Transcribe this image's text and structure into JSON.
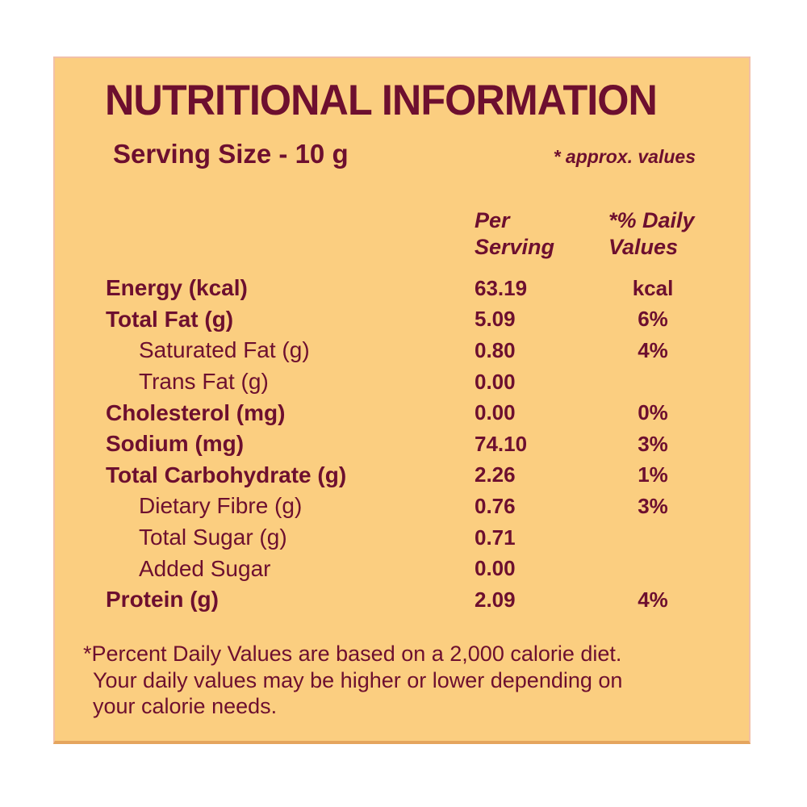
{
  "label": {
    "title": "NUTRITIONAL INFORMATION",
    "serving_size": "Serving Size  - 10 g",
    "approx_note": "* approx. values",
    "colors": {
      "background": "#FBCE80",
      "text": "#6D0F2F",
      "border_bottom": "#E5A55E"
    },
    "columns": {
      "per_serving": "Per Serving",
      "daily_values": "*% Daily Values"
    },
    "rows": [
      {
        "label": "Energy (kcal)",
        "bold": true,
        "indent": false,
        "per_serving": "63.19",
        "daily": "kcal"
      },
      {
        "label": "Total Fat (g)",
        "bold": true,
        "indent": false,
        "per_serving": "5.09",
        "daily": "6%"
      },
      {
        "label": "Saturated Fat (g)",
        "bold": false,
        "indent": true,
        "per_serving": "0.80",
        "daily": "4%"
      },
      {
        "label": "Trans Fat (g)",
        "bold": false,
        "indent": true,
        "per_serving": "0.00",
        "daily": ""
      },
      {
        "label": "Cholesterol (mg)",
        "bold": true,
        "indent": false,
        "per_serving": "0.00",
        "daily": "0%"
      },
      {
        "label": "Sodium (mg)",
        "bold": true,
        "indent": false,
        "per_serving": "74.10",
        "daily": "3%"
      },
      {
        "label": "Total Carbohydrate (g)",
        "bold": true,
        "indent": false,
        "per_serving": "2.26",
        "daily": "1%"
      },
      {
        "label": "Dietary Fibre (g)",
        "bold": false,
        "indent": true,
        "per_serving": "0.76",
        "daily": "3%"
      },
      {
        "label": "Total Sugar (g)",
        "bold": false,
        "indent": true,
        "per_serving": "0.71",
        "daily": ""
      },
      {
        "label": "Added Sugar",
        "bold": false,
        "indent": true,
        "per_serving": "0.00",
        "daily": ""
      },
      {
        "label": "Protein (g)",
        "bold": true,
        "indent": false,
        "per_serving": "2.09",
        "daily": "4%"
      }
    ],
    "footnote_lines": [
      "*Percent Daily Values are based on a 2,000 calorie diet.",
      "Your daily values may be higher or lower depending on",
      "your calorie needs."
    ]
  }
}
